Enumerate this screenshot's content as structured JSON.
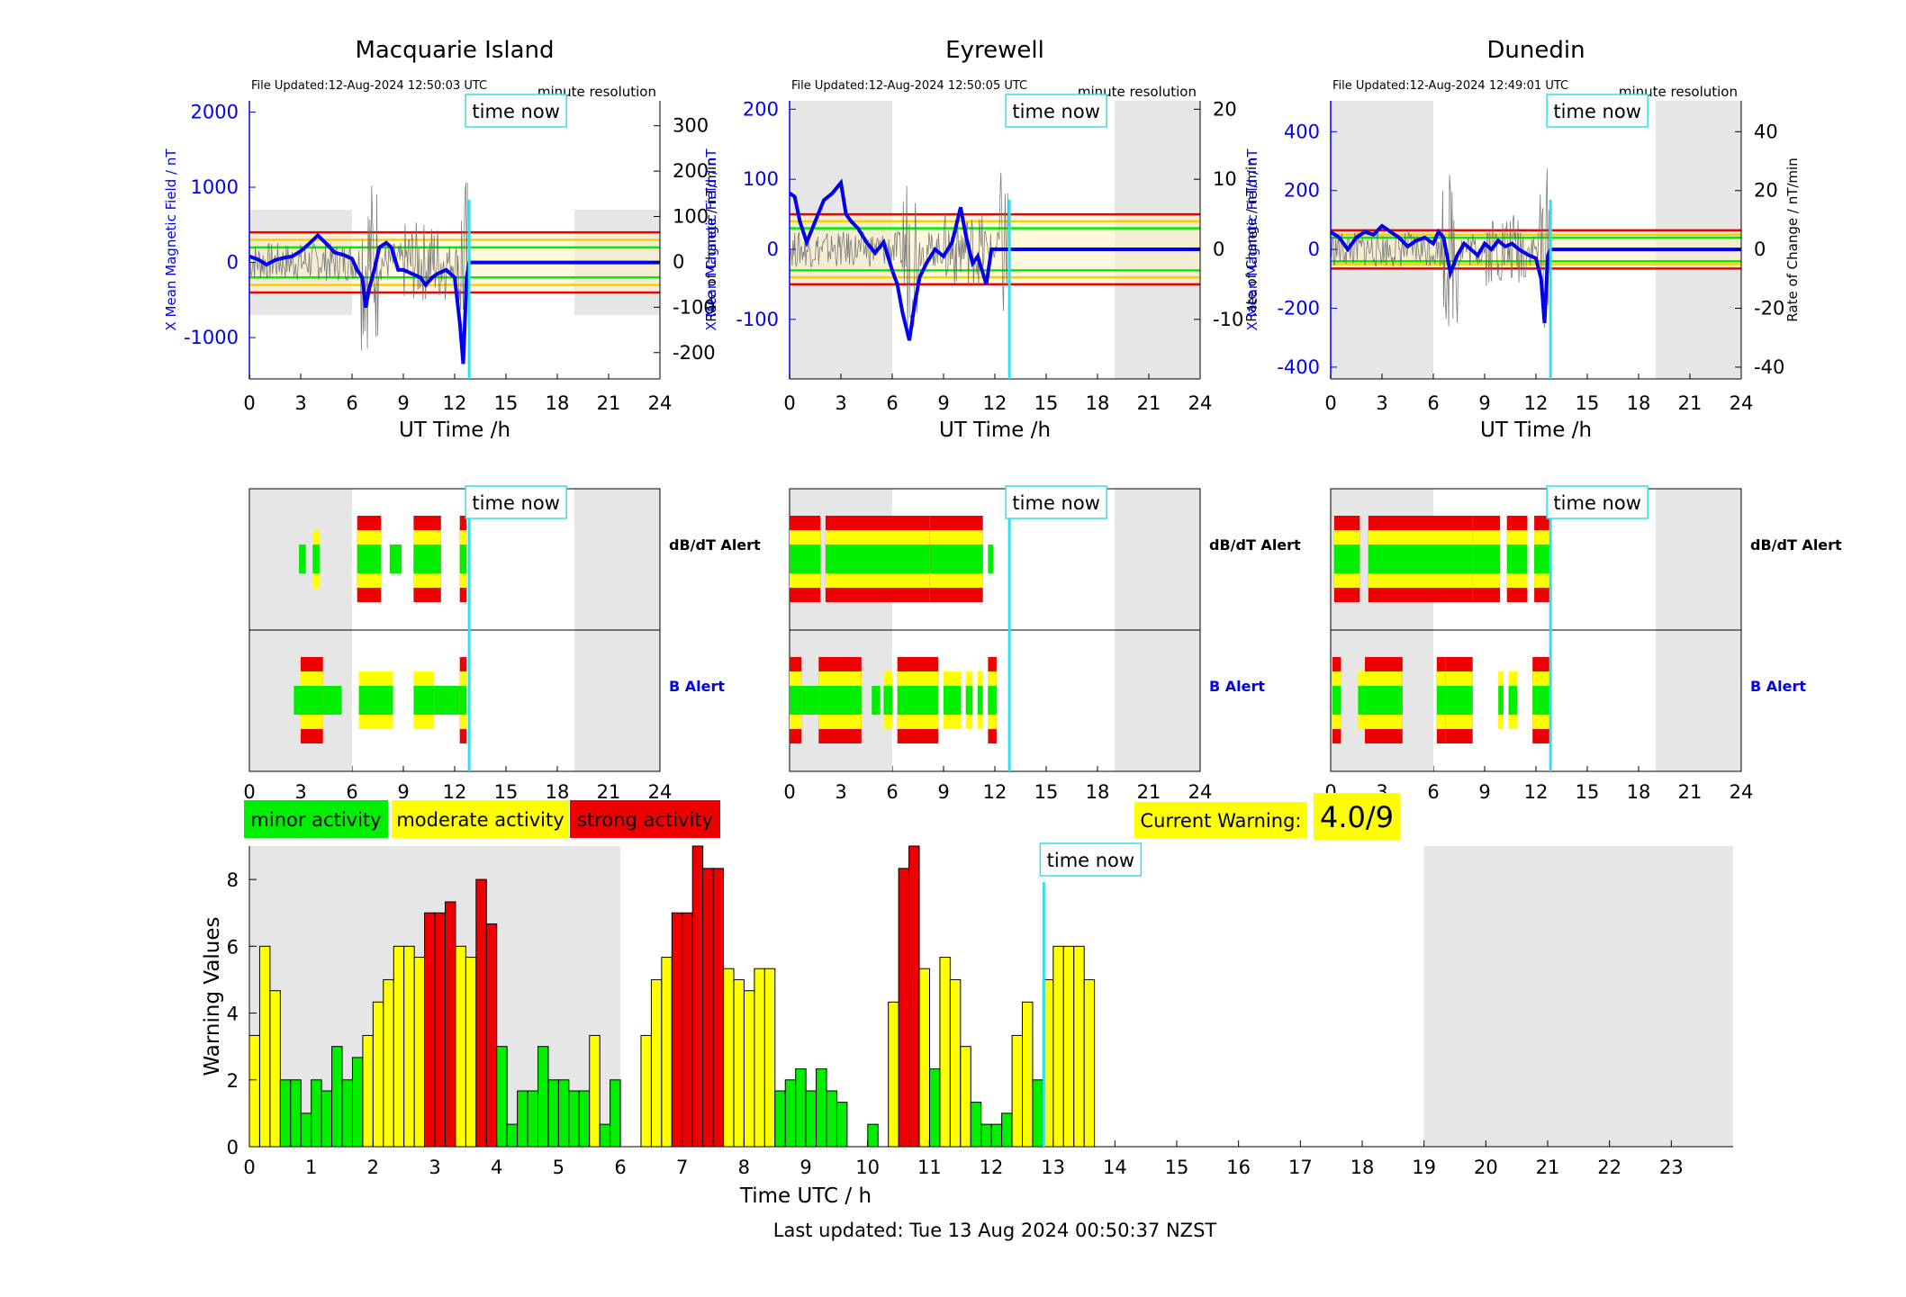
{
  "footer": "Last updated: Tue 13 Aug 2024 00:50:37 NZST",
  "time_now_label": "time now",
  "resolution_label": "minute resolution",
  "x_axis_label_top": "UT Time /h",
  "x_ticks_24": [
    "0",
    "3",
    "6",
    "9",
    "12",
    "15",
    "18",
    "21",
    "24"
  ],
  "alert_labels": {
    "dbdt": "dB/dT Alert",
    "b": "B Alert"
  },
  "legend": {
    "minor": "minor activity",
    "moderate": "moderate activity",
    "strong": "strong activity"
  },
  "current_warning": {
    "label": "Current Warning:",
    "value": "4.0/9"
  },
  "colors": {
    "minor": "#00ee00",
    "moderate": "#ffff00",
    "strong": "#ee0000",
    "field": "#0000ee",
    "now": "#33ddee",
    "shade": "#e6e6e6"
  },
  "now_hour": 12.85,
  "stations": [
    {
      "name": "Macquarie Island",
      "file_updated": "File Updated:12-Aug-2024 12:50:03 UTC",
      "left_label": "X Mean Magnetic Field / nT",
      "right_label": "Rate of Change / nT/min",
      "left_ticks": [
        "2000",
        "1000",
        "0",
        "-1000"
      ],
      "left_tick_vals": [
        2000,
        1000,
        0,
        -1000
      ],
      "left_range": [
        -1550,
        2150
      ],
      "right_ticks": [
        "300",
        "200",
        "100",
        "0",
        "-100",
        "-200"
      ],
      "right_tick_vals": [
        300,
        200,
        100,
        0,
        -100,
        -200
      ],
      "right_range": [
        -258,
        355
      ],
      "thresholds": {
        "green": 200,
        "yellow": 300,
        "red": 400
      },
      "shade_box": [
        -700,
        700
      ],
      "field": [
        [
          0,
          80
        ],
        [
          0.5,
          40
        ],
        [
          1,
          -30
        ],
        [
          1.5,
          30
        ],
        [
          2,
          60
        ],
        [
          2.5,
          80
        ],
        [
          3,
          150
        ],
        [
          3.5,
          250
        ],
        [
          4,
          360
        ],
        [
          4.5,
          250
        ],
        [
          5,
          130
        ],
        [
          5.5,
          100
        ],
        [
          6,
          50
        ],
        [
          6.3,
          -100
        ],
        [
          6.6,
          -200
        ],
        [
          6.8,
          -600
        ],
        [
          7,
          -350
        ],
        [
          7.3,
          -100
        ],
        [
          7.6,
          200
        ],
        [
          8,
          260
        ],
        [
          8.3,
          200
        ],
        [
          8.7,
          -100
        ],
        [
          9,
          -100
        ],
        [
          9.5,
          -150
        ],
        [
          10,
          -200
        ],
        [
          10.3,
          -300
        ],
        [
          10.7,
          -200
        ],
        [
          11,
          -150
        ],
        [
          11.5,
          -100
        ],
        [
          12,
          -200
        ],
        [
          12.3,
          -800
        ],
        [
          12.5,
          -1350
        ],
        [
          12.7,
          -200
        ],
        [
          12.85,
          0
        ],
        [
          24,
          0
        ]
      ],
      "dbdt": [
        {
          "s": 2.9,
          "e": 3.3,
          "lvl": 1
        },
        {
          "s": 3.7,
          "e": 4.1,
          "lvl": 2
        },
        {
          "s": 6.3,
          "e": 7.7,
          "lvl": 3
        },
        {
          "s": 8.2,
          "e": 8.9,
          "lvl": 1
        },
        {
          "s": 9.6,
          "e": 11.2,
          "lvl": 3
        },
        {
          "s": 12.3,
          "e": 12.7,
          "lvl": 3
        }
      ],
      "balert": [
        {
          "s": 2.6,
          "e": 3.0,
          "lvl": 1
        },
        {
          "s": 3.0,
          "e": 4.3,
          "lvl": 3
        },
        {
          "s": 4.3,
          "e": 5.4,
          "lvl": 1
        },
        {
          "s": 6.4,
          "e": 7.5,
          "lvl": 2
        },
        {
          "s": 7.5,
          "e": 8.4,
          "lvl": 2
        },
        {
          "s": 9.6,
          "e": 10.8,
          "lvl": 2
        },
        {
          "s": 10.8,
          "e": 12.3,
          "lvl": 1
        },
        {
          "s": 12.3,
          "e": 12.7,
          "lvl": 3
        }
      ]
    },
    {
      "name": "Eyrewell",
      "file_updated": "File Updated:12-Aug-2024 12:50:05 UTC",
      "left_label": "X Mean Magnetic Field / nT",
      "right_label": "Rate of Change / nT/min",
      "left_ticks": [
        "200",
        "100",
        "0",
        "-100"
      ],
      "left_tick_vals": [
        200,
        100,
        0,
        -100
      ],
      "left_range": [
        -185,
        212
      ],
      "right_ticks": [
        "20",
        "10",
        "0",
        "-10"
      ],
      "right_tick_vals": [
        20,
        10,
        0,
        -10
      ],
      "right_range": [
        -18.5,
        21.2
      ],
      "thresholds": {
        "green": 30,
        "yellow": 40,
        "red": 50
      },
      "shade_box": null,
      "field": [
        [
          0,
          80
        ],
        [
          0.3,
          75
        ],
        [
          0.6,
          40
        ],
        [
          1,
          10
        ],
        [
          1.5,
          40
        ],
        [
          2,
          70
        ],
        [
          2.5,
          80
        ],
        [
          3,
          95
        ],
        [
          3.3,
          50
        ],
        [
          3.6,
          40
        ],
        [
          4,
          30
        ],
        [
          4.5,
          10
        ],
        [
          5,
          -5
        ],
        [
          5.5,
          10
        ],
        [
          6,
          -30
        ],
        [
          6.3,
          -50
        ],
        [
          6.6,
          -90
        ],
        [
          7,
          -130
        ],
        [
          7.3,
          -80
        ],
        [
          7.6,
          -40
        ],
        [
          8,
          -20
        ],
        [
          8.5,
          0
        ],
        [
          9,
          -10
        ],
        [
          9.5,
          10
        ],
        [
          10,
          60
        ],
        [
          10.3,
          20
        ],
        [
          10.7,
          -20
        ],
        [
          11,
          -10
        ],
        [
          11.5,
          -50
        ],
        [
          11.8,
          0
        ],
        [
          12.85,
          0
        ],
        [
          24,
          0
        ]
      ],
      "dbdt": [
        {
          "s": 0.0,
          "e": 1.8,
          "lvl": 3
        },
        {
          "s": 2.1,
          "e": 8.2,
          "lvl": 3
        },
        {
          "s": 8.2,
          "e": 11.3,
          "lvl": 3
        },
        {
          "s": 11.6,
          "e": 11.9,
          "lvl": 1
        }
      ],
      "balert": [
        {
          "s": 0.0,
          "e": 0.7,
          "lvl": 3
        },
        {
          "s": 0.7,
          "e": 1.7,
          "lvl": 1
        },
        {
          "s": 1.7,
          "e": 4.2,
          "lvl": 3
        },
        {
          "s": 4.8,
          "e": 5.3,
          "lvl": 1
        },
        {
          "s": 5.5,
          "e": 6.0,
          "lvl": 2
        },
        {
          "s": 6.3,
          "e": 8.7,
          "lvl": 3
        },
        {
          "s": 9.0,
          "e": 10.0,
          "lvl": 2
        },
        {
          "s": 10.3,
          "e": 10.7,
          "lvl": 2
        },
        {
          "s": 11.0,
          "e": 11.3,
          "lvl": 2
        },
        {
          "s": 11.6,
          "e": 12.1,
          "lvl": 3
        }
      ]
    },
    {
      "name": "Dunedin",
      "file_updated": "File Updated:12-Aug-2024 12:49:01 UTC",
      "left_label": "X Mean Magnetic Field / nT",
      "right_label": "Rate of Change / nT/min",
      "left_ticks": [
        "400",
        "200",
        "0",
        "-200",
        "-400"
      ],
      "left_tick_vals": [
        400,
        200,
        0,
        -200,
        -400
      ],
      "left_range": [
        -440,
        505
      ],
      "right_ticks": [
        "40",
        "20",
        "0",
        "-20",
        "-40"
      ],
      "right_tick_vals": [
        40,
        20,
        0,
        -20,
        -40
      ],
      "right_range": [
        -44,
        50.5
      ],
      "thresholds": {
        "green": 40,
        "yellow": 50,
        "red": 65
      },
      "shade_box": null,
      "field": [
        [
          0,
          60
        ],
        [
          0.5,
          40
        ],
        [
          1,
          0
        ],
        [
          1.5,
          40
        ],
        [
          2,
          60
        ],
        [
          2.5,
          50
        ],
        [
          3,
          80
        ],
        [
          3.5,
          60
        ],
        [
          4,
          40
        ],
        [
          4.5,
          10
        ],
        [
          5,
          30
        ],
        [
          5.5,
          40
        ],
        [
          6,
          20
        ],
        [
          6.3,
          60
        ],
        [
          6.6,
          40
        ],
        [
          7,
          -80
        ],
        [
          7.4,
          -20
        ],
        [
          7.8,
          20
        ],
        [
          8.2,
          0
        ],
        [
          8.6,
          -20
        ],
        [
          9,
          20
        ],
        [
          9.4,
          0
        ],
        [
          9.8,
          30
        ],
        [
          10.2,
          10
        ],
        [
          10.6,
          20
        ],
        [
          11,
          0
        ],
        [
          11.6,
          -20
        ],
        [
          12,
          -30
        ],
        [
          12.3,
          -100
        ],
        [
          12.5,
          -250
        ],
        [
          12.7,
          -20
        ],
        [
          12.85,
          0
        ],
        [
          24,
          0
        ]
      ],
      "dbdt": [
        {
          "s": 0.2,
          "e": 1.7,
          "lvl": 3
        },
        {
          "s": 2.2,
          "e": 8.3,
          "lvl": 3
        },
        {
          "s": 8.3,
          "e": 9.9,
          "lvl": 3
        },
        {
          "s": 10.3,
          "e": 11.5,
          "lvl": 3
        },
        {
          "s": 11.9,
          "e": 12.8,
          "lvl": 3
        }
      ],
      "balert": [
        {
          "s": 0.1,
          "e": 0.6,
          "lvl": 3
        },
        {
          "s": 1.6,
          "e": 2.0,
          "lvl": 2
        },
        {
          "s": 2.0,
          "e": 4.2,
          "lvl": 3
        },
        {
          "s": 6.2,
          "e": 6.7,
          "lvl": 3
        },
        {
          "s": 6.7,
          "e": 8.3,
          "lvl": 3
        },
        {
          "s": 9.8,
          "e": 10.1,
          "lvl": 2
        },
        {
          "s": 10.4,
          "e": 10.9,
          "lvl": 2
        },
        {
          "s": 11.8,
          "e": 12.8,
          "lvl": 3
        }
      ]
    }
  ],
  "chart_data": {
    "type": "bar",
    "ylabel": "Warning Values",
    "xlabel": "Time UTC / h",
    "x_ticks": [
      "0",
      "1",
      "2",
      "3",
      "4",
      "5",
      "6",
      "7",
      "8",
      "9",
      "10",
      "11",
      "12",
      "13",
      "14",
      "15",
      "16",
      "17",
      "18",
      "19",
      "20",
      "21",
      "22",
      "23"
    ],
    "ylim": [
      0,
      9
    ],
    "y_ticks": [
      "0",
      "2",
      "4",
      "6",
      "8"
    ],
    "bin_hours": 0.1667,
    "values": [
      3.33,
      6.0,
      4.67,
      2.0,
      2.0,
      1.0,
      2.0,
      1.67,
      3.0,
      2.0,
      2.67,
      3.33,
      4.33,
      5.0,
      6.0,
      6.0,
      5.67,
      7.0,
      7.0,
      7.33,
      6.0,
      5.67,
      8.0,
      6.67,
      3.0,
      0.67,
      1.67,
      1.67,
      3.0,
      2.0,
      2.0,
      1.67,
      1.67,
      3.33,
      0.67,
      2.0,
      0,
      0,
      3.33,
      5.0,
      5.67,
      7.0,
      7.0,
      9.0,
      8.33,
      8.33,
      5.33,
      5.0,
      4.67,
      5.33,
      5.33,
      1.67,
      2.0,
      2.33,
      1.67,
      2.33,
      1.67,
      1.33,
      0,
      0,
      0.67,
      0,
      4.33,
      8.33,
      9.0,
      5.33,
      2.33,
      5.67,
      5.0,
      3.0,
      1.33,
      0.67,
      0.67,
      1.0,
      3.33,
      4.33,
      2.0,
      5.0,
      6.0,
      6.0,
      6.0,
      5.0
    ],
    "colors": [
      "yellow",
      "yellow",
      "yellow",
      "green",
      "green",
      "green",
      "green",
      "green",
      "green",
      "green",
      "green",
      "yellow",
      "yellow",
      "yellow",
      "yellow",
      "yellow",
      "yellow",
      "red",
      "red",
      "red",
      "yellow",
      "yellow",
      "red",
      "red",
      "green",
      "green",
      "green",
      "green",
      "green",
      "green",
      "green",
      "green",
      "green",
      "yellow",
      "green",
      "green",
      "green",
      "green",
      "yellow",
      "yellow",
      "yellow",
      "red",
      "red",
      "red",
      "red",
      "red",
      "yellow",
      "yellow",
      "yellow",
      "yellow",
      "yellow",
      "green",
      "green",
      "green",
      "green",
      "green",
      "green",
      "green",
      "green",
      "green",
      "green",
      "green",
      "yellow",
      "red",
      "red",
      "yellow",
      "green",
      "yellow",
      "yellow",
      "yellow",
      "green",
      "green",
      "green",
      "green",
      "yellow",
      "yellow",
      "green",
      "yellow",
      "yellow",
      "yellow",
      "yellow",
      "yellow"
    ]
  }
}
